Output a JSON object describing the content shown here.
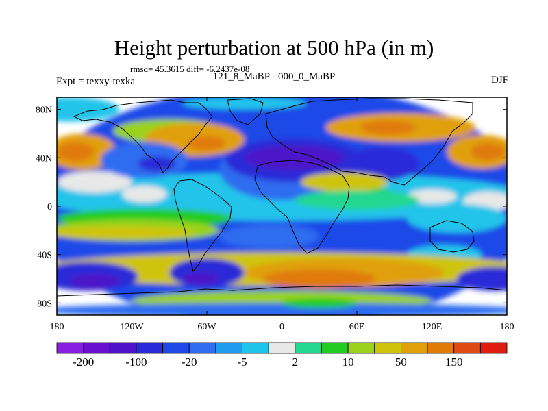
{
  "title": "Height perturbation at 500 hPa (in m)",
  "stats": "rmsd= 45.3615 diff= -6.2437e-08",
  "left_label": "Expt = texxy-texka",
  "center_label": "121_8_MaBP - 000_0_MaBP",
  "right_label": "DJF",
  "map": {
    "lat_range": [
      -90,
      90
    ],
    "lon_range": [
      -180,
      180
    ],
    "y_ticks": [
      {
        "lat": 80,
        "label": "80N"
      },
      {
        "lat": 40,
        "label": "40N"
      },
      {
        "lat": 0,
        "label": "0"
      },
      {
        "lat": -40,
        "label": "40S"
      },
      {
        "lat": -80,
        "label": "80S"
      }
    ],
    "x_ticks": [
      {
        "lon": -180,
        "label": "180"
      },
      {
        "lon": -120,
        "label": "120W"
      },
      {
        "lon": -60,
        "label": "60W"
      },
      {
        "lon": 0,
        "label": "0"
      },
      {
        "lon": 60,
        "label": "60E"
      },
      {
        "lon": 120,
        "label": "120E"
      },
      {
        "lon": 180,
        "label": "180"
      }
    ]
  },
  "colorbar": {
    "colors": [
      "#8a1ee0",
      "#6a0fd0",
      "#4e12c8",
      "#2a2ad8",
      "#1f48e8",
      "#2f6cf0",
      "#1f9cf0",
      "#20c4ea",
      "#e8e8e8",
      "#22d890",
      "#22cc22",
      "#9ad21e",
      "#cfc40a",
      "#e0a008",
      "#e07a08",
      "#e04a14",
      "#e01c10"
    ],
    "labels": [
      {
        "boundary": 1,
        "text": "-200"
      },
      {
        "boundary": 3,
        "text": "-100"
      },
      {
        "boundary": 5,
        "text": "-20"
      },
      {
        "boundary": 7,
        "text": "-5"
      },
      {
        "boundary": 9,
        "text": "2"
      },
      {
        "boundary": 11,
        "text": "10"
      },
      {
        "boundary": 13,
        "text": "50"
      },
      {
        "boundary": 15,
        "text": "150"
      }
    ]
  },
  "field_blobs": [
    {
      "lon": 0,
      "lat": 0,
      "rx": 200,
      "ry": 100,
      "c": "#1f48e8"
    },
    {
      "lon": 0,
      "lat": 8,
      "rx": 200,
      "ry": 20,
      "c": "#20c4ea"
    },
    {
      "lon": -150,
      "lat": 20,
      "rx": 30,
      "ry": 9,
      "c": "#e8e8e8"
    },
    {
      "lon": -110,
      "lat": 10,
      "rx": 18,
      "ry": 7,
      "c": "#e8e8e8"
    },
    {
      "lon": 165,
      "lat": 4,
      "rx": 20,
      "ry": 8,
      "c": "#e8e8e8"
    },
    {
      "lon": 120,
      "lat": 8,
      "rx": 20,
      "ry": 6,
      "c": "#e8e8e8"
    },
    {
      "lon": -20,
      "lat": 18,
      "rx": 25,
      "ry": 6,
      "c": "#22d890"
    },
    {
      "lon": 60,
      "lat": 10,
      "rx": 30,
      "ry": 6,
      "c": "#22cc22"
    },
    {
      "lon": -110,
      "lat": -10,
      "rx": 70,
      "ry": 8,
      "c": "#22cc22"
    },
    {
      "lon": -120,
      "lat": -20,
      "rx": 70,
      "ry": 9,
      "c": "#9ad21e"
    },
    {
      "lon": -130,
      "lat": -22,
      "rx": 60,
      "ry": 5,
      "c": "#cfc40a"
    },
    {
      "lon": -160,
      "lat": 45,
      "rx": 28,
      "ry": 15,
      "c": "#e0a008"
    },
    {
      "lon": -165,
      "lat": 45,
      "rx": 15,
      "ry": 8,
      "c": "#e07a08"
    },
    {
      "lon": -90,
      "lat": 62,
      "rx": 45,
      "ry": 10,
      "c": "#9ad21e"
    },
    {
      "lon": -70,
      "lat": 55,
      "rx": 40,
      "ry": 14,
      "c": "#e0a008"
    },
    {
      "lon": -60,
      "lat": 52,
      "rx": 15,
      "ry": 6,
      "c": "#e07a08"
    },
    {
      "lon": 95,
      "lat": 65,
      "rx": 60,
      "ry": 12,
      "c": "#e0a008"
    },
    {
      "lon": 85,
      "lat": 65,
      "rx": 22,
      "ry": 6,
      "c": "#e07a08"
    },
    {
      "lon": 160,
      "lat": 45,
      "rx": 28,
      "ry": 14,
      "c": "#e0a008"
    },
    {
      "lon": 165,
      "lat": 45,
      "rx": 14,
      "ry": 7,
      "c": "#e07a08"
    },
    {
      "lon": 0,
      "lat": 30,
      "rx": 50,
      "ry": 25,
      "c": "#2f6cf0"
    },
    {
      "lon": 10,
      "lat": 38,
      "rx": 55,
      "ry": 18,
      "c": "#2a2ad8"
    },
    {
      "lon": 10,
      "lat": 40,
      "rx": 40,
      "ry": 10,
      "c": "#4e12c8"
    },
    {
      "lon": 80,
      "lat": 35,
      "rx": 30,
      "ry": 14,
      "c": "#2a2ad8"
    },
    {
      "lon": -110,
      "lat": 38,
      "rx": 35,
      "ry": 15,
      "c": "#2f6cf0"
    },
    {
      "lon": -100,
      "lat": 35,
      "rx": 15,
      "ry": 6,
      "c": "#2a2ad8"
    },
    {
      "lon": -170,
      "lat": 80,
      "rx": 40,
      "ry": 10,
      "c": "#20c4ea"
    },
    {
      "lon": -30,
      "lat": 85,
      "rx": 50,
      "ry": 5,
      "c": "#20c4ea"
    },
    {
      "lon": 50,
      "lat": 20,
      "rx": 35,
      "ry": 8,
      "c": "#cfc40a"
    },
    {
      "lon": 60,
      "lat": 5,
      "rx": 50,
      "ry": 8,
      "c": "#22d890"
    },
    {
      "lon": 140,
      "lat": -10,
      "rx": 40,
      "ry": 12,
      "c": "#20c4ea"
    },
    {
      "lon": 130,
      "lat": -40,
      "rx": 30,
      "ry": 8,
      "c": "#20c4ea"
    },
    {
      "lon": -10,
      "lat": -25,
      "rx": 40,
      "ry": 10,
      "c": "#2f6cf0"
    },
    {
      "lon": 0,
      "lat": -52,
      "rx": 200,
      "ry": 14,
      "c": "#cfc40a"
    },
    {
      "lon": 50,
      "lat": -55,
      "rx": 80,
      "ry": 12,
      "c": "#e0a008"
    },
    {
      "lon": 30,
      "lat": -60,
      "rx": 45,
      "ry": 8,
      "c": "#e07a08"
    },
    {
      "lon": -155,
      "lat": -58,
      "rx": 40,
      "ry": 12,
      "c": "#2a2ad8"
    },
    {
      "lon": -150,
      "lat": -62,
      "rx": 20,
      "ry": 6,
      "c": "#4e12c8"
    },
    {
      "lon": -60,
      "lat": -55,
      "rx": 30,
      "ry": 12,
      "c": "#2a2ad8"
    },
    {
      "lon": -65,
      "lat": -60,
      "rx": 15,
      "ry": 5,
      "c": "#4e12c8"
    },
    {
      "lon": 170,
      "lat": -60,
      "rx": 30,
      "ry": 10,
      "c": "#2a2ad8"
    },
    {
      "lon": 0,
      "lat": -78,
      "rx": 120,
      "ry": 8,
      "c": "#9ad21e"
    },
    {
      "lon": 0,
      "lat": -86,
      "rx": 200,
      "ry": 6,
      "c": "#2f6cf0"
    },
    {
      "lon": 30,
      "lat": -80,
      "rx": 30,
      "ry": 4,
      "c": "#22cc22"
    }
  ]
}
